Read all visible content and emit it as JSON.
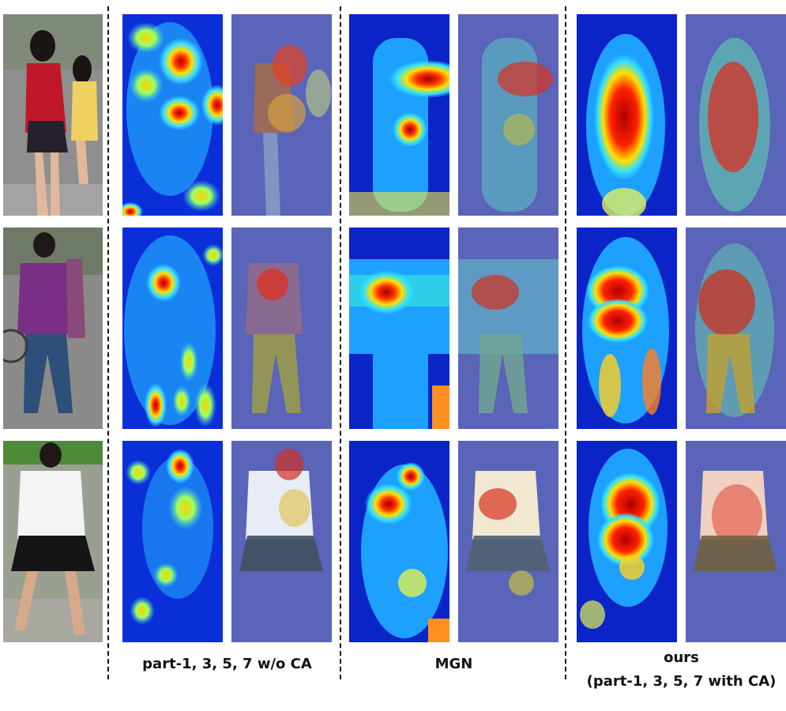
{
  "figure": {
    "columns": [
      {
        "caption": "part-1, 3, 5, 7 w/o CA"
      },
      {
        "caption": "MGN"
      },
      {
        "caption": "ours",
        "caption_line2": "(part-1, 3, 5, 7 with CA)"
      }
    ],
    "rows": [
      {
        "person_colors": {
          "shirt": "#c0182b",
          "lower": "#26202a",
          "skin": "#e2b79a",
          "background": "#8f8f8f"
        }
      },
      {
        "person_colors": {
          "shirt": "#7a2f86",
          "lower": "#2d4f7a",
          "skin": "#c89a7a",
          "background": "#8a8a88"
        }
      },
      {
        "person_colors": {
          "shirt": "#f4f4f4",
          "lower": "#151515",
          "skin": "#d7a98c",
          "background": "#9aa08f"
        }
      }
    ],
    "colormap": "jet"
  }
}
